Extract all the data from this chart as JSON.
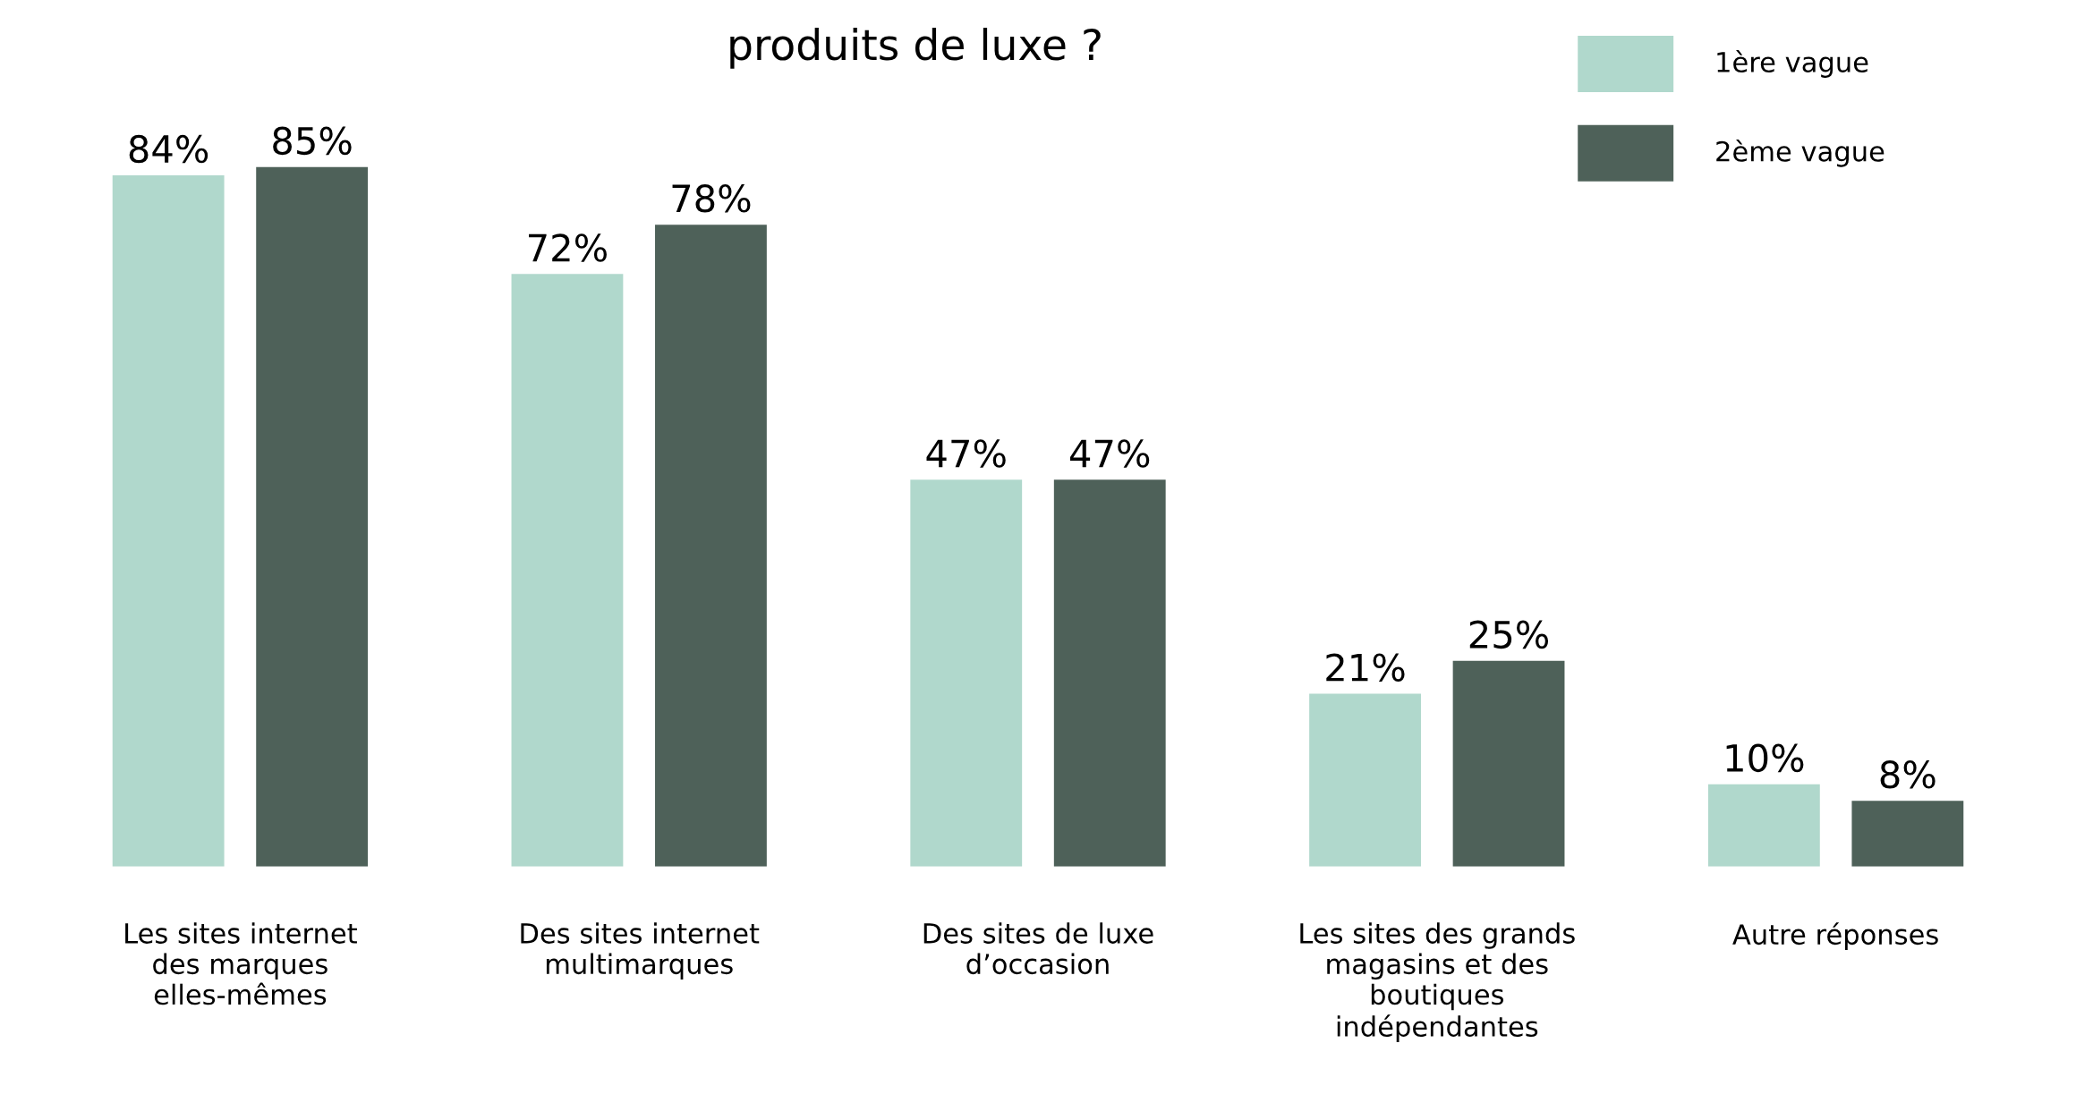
{
  "chart_data": {
    "type": "bar",
    "title": "produits de luxe ?",
    "categories": [
      "Les sites internet des marques elles-mêmes",
      "Des sites internet multimarques",
      "Des sites de luxe d’occasion",
      "Les sites des grands magasins et des boutiques indépendantes",
      "Autre réponses"
    ],
    "series": [
      {
        "name": "1ère vague",
        "color": "#b0d8cc",
        "values": [
          84,
          72,
          47,
          21,
          10
        ],
        "value_labels": [
          "84%",
          "72%",
          "47%",
          "21%",
          "10%"
        ]
      },
      {
        "name": "2ème vague",
        "color": "#4e6159",
        "values": [
          85,
          78,
          47,
          25,
          8
        ],
        "value_labels": [
          "85%",
          "78%",
          "47%",
          "25%",
          "8%"
        ]
      }
    ],
    "legend": "top right",
    "grid": false
  }
}
